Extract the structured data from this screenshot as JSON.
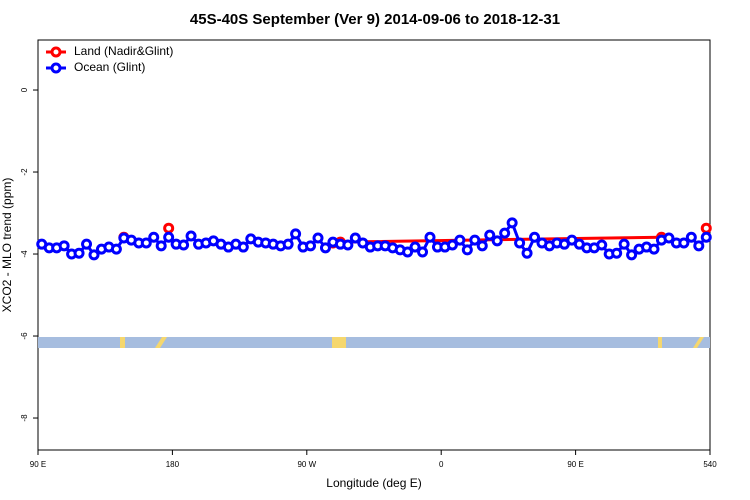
{
  "chart_data": {
    "type": "line",
    "title": "45S-40S September (Ver 9)   2014-09-06 to 2018-12-31",
    "xlabel": "Longitude (deg E)",
    "ylabel": "XCO2 - MLO trend (ppm)",
    "xlim": [
      90,
      540
    ],
    "ylim": [
      -8.78,
      1.22
    ],
    "xticks": [
      {
        "value": 90,
        "label": "90 E"
      },
      180,
      {
        "value": 270,
        "label": "90 W"
      },
      {
        "value": 360,
        "label": "0"
      },
      {
        "value": 450,
        "label": "90 E"
      },
      540
    ],
    "yticks": [
      0,
      -2,
      -4,
      -6,
      -8
    ],
    "grid": false,
    "legend": "top-left",
    "series": [
      {
        "name": "Land (Nadir&Glint)",
        "color": "#ff0000",
        "x": [
          147.5,
          152.5,
          177.5,
          182.5,
          287.5,
          292.5,
          507.5,
          512.5,
          537.5
        ],
        "values": [
          -3.59,
          null,
          -3.37,
          null,
          -3.73,
          -3.71,
          -3.59,
          null,
          -3.37
        ]
      },
      {
        "name": "Ocean (Glint)",
        "color": "#0000ff",
        "x": [
          92.5,
          97.5,
          102.5,
          107.5,
          112.5,
          117.5,
          122.5,
          127.5,
          132.5,
          137.5,
          142.5,
          147.5,
          152.5,
          157.5,
          162.5,
          167.5,
          172.5,
          177.5,
          182.5,
          187.5,
          192.5,
          197.5,
          202.5,
          207.5,
          212.5,
          217.5,
          222.5,
          227.5,
          232.5,
          237.5,
          242.5,
          247.5,
          252.5,
          257.5,
          262.5,
          267.5,
          272.5,
          277.5,
          282.5,
          287.5,
          292.5,
          297.5,
          302.5,
          307.5,
          312.5,
          317.5,
          322.5,
          327.5,
          332.5,
          337.5,
          342.5,
          347.5,
          352.5,
          357.5,
          362.5,
          367.5,
          372.5,
          377.5,
          382.5,
          387.5,
          392.5,
          397.5,
          402.5,
          407.5,
          412.5,
          417.5,
          422.5,
          427.5,
          432.5,
          437.5,
          442.5,
          447.5,
          452.5,
          457.5,
          462.5,
          467.5,
          472.5,
          477.5,
          482.5,
          487.5,
          492.5,
          497.5,
          502.5,
          507.5,
          512.5,
          517.5,
          522.5,
          527.5,
          532.5,
          537.5
        ],
        "values": [
          -3.76,
          -3.85,
          -3.85,
          -3.8,
          -4.0,
          -3.98,
          -3.76,
          -4.02,
          -3.88,
          -3.83,
          -3.88,
          -3.61,
          -3.66,
          -3.73,
          -3.73,
          -3.59,
          -3.8,
          -3.59,
          -3.76,
          -3.78,
          -3.56,
          -3.76,
          -3.73,
          -3.68,
          -3.76,
          -3.83,
          -3.76,
          -3.83,
          -3.63,
          -3.71,
          -3.73,
          -3.76,
          -3.8,
          -3.76,
          -3.51,
          -3.83,
          -3.8,
          -3.61,
          -3.85,
          -3.71,
          -3.76,
          -3.78,
          -3.61,
          -3.73,
          -3.83,
          -3.8,
          -3.8,
          -3.85,
          -3.9,
          -3.95,
          -3.83,
          -3.95,
          -3.59,
          -3.83,
          -3.83,
          -3.78,
          -3.66,
          -3.9,
          -3.66,
          -3.8,
          -3.54,
          -3.68,
          -3.49,
          -3.24,
          -3.73,
          -3.98,
          -3.59,
          -3.73,
          -3.8,
          -3.73,
          -3.76,
          -3.66,
          -3.76,
          -3.85,
          -3.85,
          -3.78,
          -4.0,
          -3.98,
          -3.76,
          -4.02,
          -3.88,
          -3.83,
          -3.88,
          -3.66,
          -3.61,
          -3.73,
          -3.73,
          -3.59,
          -3.8,
          -3.59
        ]
      }
    ]
  }
}
